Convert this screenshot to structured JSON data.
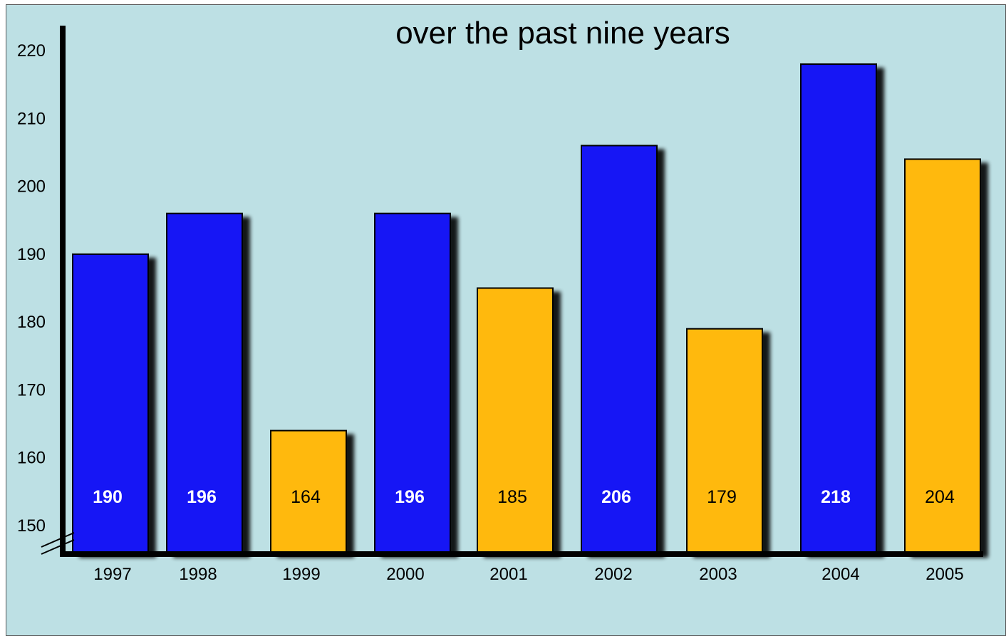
{
  "chart_data": {
    "type": "bar",
    "title": "over the past nine years",
    "xlabel": "",
    "ylabel": "",
    "categories": [
      "1997",
      "1998",
      "1999",
      "2000",
      "2001",
      "2002",
      "2003",
      "2004",
      "2005"
    ],
    "values": [
      190,
      196,
      164,
      196,
      185,
      206,
      179,
      218,
      204
    ],
    "value_labels": [
      "190",
      "196",
      "164",
      "196",
      "185",
      "206",
      "179",
      "218",
      "204"
    ],
    "bar_colors": [
      "#1414f5",
      "#1414f5",
      "#ffb90a",
      "#1414f5",
      "#ffb90a",
      "#1414f5",
      "#ffb90a",
      "#1414f5",
      "#ffb90a"
    ],
    "label_colors": [
      "#ffffff",
      "#ffffff",
      "#000000",
      "#ffffff",
      "#000000",
      "#ffffff",
      "#000000",
      "#ffffff",
      "#000000"
    ],
    "yticks": [
      "150",
      "160",
      "170",
      "180",
      "190",
      "200",
      "210",
      "220"
    ],
    "ylim": [
      150,
      220
    ],
    "y_axis_broken": true,
    "grid": false,
    "legend": "none",
    "colors": {
      "background": "#bde0e4",
      "bar_blue": "#1414f5",
      "bar_gold": "#ffb90a",
      "axis": "#000000"
    }
  }
}
